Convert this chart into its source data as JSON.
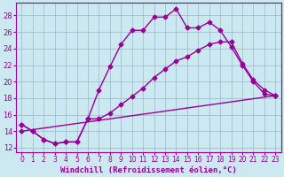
{
  "xlabel": "Windchill (Refroidissement éolien,°C)",
  "bg_color": "#cce8f0",
  "line_color": "#990099",
  "xlim": [
    -0.5,
    23.5
  ],
  "ylim": [
    11.5,
    29.5
  ],
  "xticks": [
    0,
    1,
    2,
    3,
    4,
    5,
    6,
    7,
    8,
    9,
    10,
    11,
    12,
    13,
    14,
    15,
    16,
    17,
    18,
    19,
    20,
    21,
    22,
    23
  ],
  "yticks": [
    12,
    14,
    16,
    18,
    20,
    22,
    24,
    26,
    28
  ],
  "line1_x": [
    0,
    1,
    2,
    3,
    4,
    5,
    6,
    7,
    8,
    9,
    10,
    11,
    12,
    13,
    14,
    15,
    16,
    17,
    18,
    19,
    20,
    21,
    22,
    23
  ],
  "line1_y": [
    14.8,
    14.0,
    13.0,
    12.5,
    12.7,
    12.7,
    15.5,
    19.0,
    21.8,
    24.5,
    26.2,
    26.2,
    27.8,
    27.8,
    28.8,
    26.5,
    26.5,
    27.2,
    26.2,
    24.2,
    22.0,
    20.0,
    18.5,
    18.3
  ],
  "line2_x": [
    0,
    1,
    2,
    3,
    4,
    5,
    6,
    7,
    8,
    9,
    10,
    11,
    12,
    13,
    14,
    15,
    16,
    17,
    18,
    19,
    20,
    21,
    22,
    23
  ],
  "line2_y": [
    14.8,
    14.0,
    13.0,
    12.5,
    12.7,
    12.7,
    15.5,
    15.5,
    16.2,
    17.2,
    18.2,
    19.2,
    20.5,
    21.5,
    22.5,
    23.0,
    23.8,
    24.5,
    24.8,
    24.8,
    22.2,
    20.2,
    19.0,
    18.3
  ],
  "line3_x": [
    0,
    23
  ],
  "line3_y": [
    14.0,
    18.3
  ],
  "grid_color": "#9ab8c8",
  "marker": "D",
  "markersize": 2.5,
  "linewidth": 1.0,
  "tick_fontsize": 5.5,
  "xlabel_fontsize": 6.5
}
